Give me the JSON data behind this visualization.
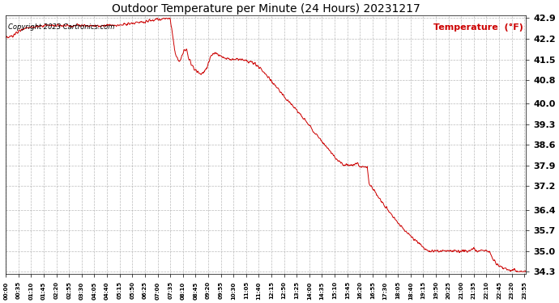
{
  "title": "Outdoor Temperature per Minute (24 Hours) 20231217",
  "copyright_text": "Copyright 2023 Cartronics.com",
  "legend_label": "Temperature  (°F)",
  "line_color": "#cc0000",
  "background_color": "#ffffff",
  "grid_color": "#aaaaaa",
  "text_color": "#000000",
  "legend_color": "#cc0000",
  "copyright_color": "#000000",
  "ylim_min": 34.3,
  "ylim_max": 42.9,
  "yticks": [
    34.3,
    35.0,
    35.7,
    36.4,
    37.2,
    37.9,
    38.6,
    39.3,
    40.0,
    40.8,
    41.5,
    42.2,
    42.9
  ],
  "xtick_labels": [
    "00:00",
    "00:35",
    "01:10",
    "01:45",
    "02:20",
    "02:55",
    "03:30",
    "04:05",
    "04:40",
    "05:15",
    "05:50",
    "06:25",
    "07:00",
    "07:35",
    "08:10",
    "08:45",
    "09:20",
    "09:55",
    "10:30",
    "11:05",
    "11:40",
    "12:15",
    "12:50",
    "13:25",
    "14:00",
    "14:35",
    "15:10",
    "15:45",
    "16:20",
    "16:55",
    "17:30",
    "18:05",
    "18:40",
    "19:15",
    "19:50",
    "20:25",
    "21:00",
    "21:35",
    "22:10",
    "22:45",
    "23:20",
    "23:55"
  ],
  "keypoints": [
    [
      0,
      42.2
    ],
    [
      20,
      42.3
    ],
    [
      40,
      42.5
    ],
    [
      60,
      42.6
    ],
    [
      90,
      42.6
    ],
    [
      120,
      42.65
    ],
    [
      150,
      42.65
    ],
    [
      180,
      42.65
    ],
    [
      210,
      42.65
    ],
    [
      240,
      42.65
    ],
    [
      270,
      42.65
    ],
    [
      300,
      42.65
    ],
    [
      330,
      42.7
    ],
    [
      360,
      42.75
    ],
    [
      390,
      42.8
    ],
    [
      420,
      42.85
    ],
    [
      445,
      42.9
    ],
    [
      450,
      42.9
    ],
    [
      455,
      42.85
    ],
    [
      460,
      42.5
    ],
    [
      465,
      42.0
    ],
    [
      470,
      41.7
    ],
    [
      475,
      41.5
    ],
    [
      480,
      41.4
    ],
    [
      485,
      41.55
    ],
    [
      490,
      41.7
    ],
    [
      495,
      41.8
    ],
    [
      500,
      41.85
    ],
    [
      505,
      41.6
    ],
    [
      510,
      41.45
    ],
    [
      515,
      41.3
    ],
    [
      520,
      41.2
    ],
    [
      525,
      41.15
    ],
    [
      530,
      41.1
    ],
    [
      535,
      41.05
    ],
    [
      540,
      41.0
    ],
    [
      545,
      41.05
    ],
    [
      550,
      41.1
    ],
    [
      555,
      41.2
    ],
    [
      560,
      41.35
    ],
    [
      565,
      41.55
    ],
    [
      570,
      41.65
    ],
    [
      575,
      41.7
    ],
    [
      580,
      41.75
    ],
    [
      585,
      41.7
    ],
    [
      590,
      41.65
    ],
    [
      600,
      41.6
    ],
    [
      610,
      41.55
    ],
    [
      620,
      41.5
    ],
    [
      630,
      41.5
    ],
    [
      640,
      41.5
    ],
    [
      650,
      41.5
    ],
    [
      660,
      41.5
    ],
    [
      670,
      41.45
    ],
    [
      680,
      41.4
    ],
    [
      690,
      41.35
    ],
    [
      700,
      41.25
    ],
    [
      710,
      41.1
    ],
    [
      720,
      41.0
    ],
    [
      730,
      40.85
    ],
    [
      740,
      40.7
    ],
    [
      750,
      40.55
    ],
    [
      760,
      40.4
    ],
    [
      770,
      40.25
    ],
    [
      780,
      40.1
    ],
    [
      790,
      40.0
    ],
    [
      800,
      39.85
    ],
    [
      810,
      39.7
    ],
    [
      820,
      39.55
    ],
    [
      830,
      39.4
    ],
    [
      840,
      39.25
    ],
    [
      850,
      39.1
    ],
    [
      860,
      38.95
    ],
    [
      870,
      38.8
    ],
    [
      880,
      38.65
    ],
    [
      890,
      38.5
    ],
    [
      900,
      38.35
    ],
    [
      910,
      38.2
    ],
    [
      920,
      38.05
    ],
    [
      930,
      37.95
    ],
    [
      940,
      37.9
    ],
    [
      950,
      37.9
    ],
    [
      960,
      37.9
    ],
    [
      970,
      37.95
    ],
    [
      975,
      37.95
    ],
    [
      980,
      37.85
    ],
    [
      990,
      37.85
    ],
    [
      1000,
      37.85
    ],
    [
      1005,
      37.3
    ],
    [
      1010,
      37.2
    ],
    [
      1020,
      37.05
    ],
    [
      1030,
      36.85
    ],
    [
      1040,
      36.65
    ],
    [
      1050,
      36.5
    ],
    [
      1060,
      36.35
    ],
    [
      1070,
      36.2
    ],
    [
      1080,
      36.05
    ],
    [
      1090,
      35.9
    ],
    [
      1100,
      35.75
    ],
    [
      1110,
      35.6
    ],
    [
      1120,
      35.5
    ],
    [
      1130,
      35.4
    ],
    [
      1140,
      35.3
    ],
    [
      1150,
      35.2
    ],
    [
      1155,
      35.1
    ],
    [
      1160,
      35.05
    ],
    [
      1165,
      35.0
    ],
    [
      1170,
      35.0
    ],
    [
      1175,
      34.95
    ],
    [
      1180,
      35.0
    ],
    [
      1185,
      35.0
    ],
    [
      1190,
      35.0
    ],
    [
      1200,
      35.0
    ],
    [
      1210,
      35.0
    ],
    [
      1220,
      35.0
    ],
    [
      1230,
      35.0
    ],
    [
      1240,
      35.0
    ],
    [
      1250,
      35.0
    ],
    [
      1260,
      35.0
    ],
    [
      1270,
      35.0
    ],
    [
      1280,
      35.0
    ],
    [
      1290,
      35.05
    ],
    [
      1295,
      35.1
    ],
    [
      1300,
      35.05
    ],
    [
      1305,
      35.0
    ],
    [
      1310,
      35.0
    ],
    [
      1315,
      35.05
    ],
    [
      1320,
      35.05
    ],
    [
      1325,
      35.0
    ],
    [
      1330,
      35.0
    ],
    [
      1335,
      35.0
    ],
    [
      1340,
      34.95
    ],
    [
      1345,
      34.8
    ],
    [
      1350,
      34.65
    ],
    [
      1360,
      34.55
    ],
    [
      1370,
      34.45
    ],
    [
      1380,
      34.4
    ],
    [
      1390,
      34.35
    ],
    [
      1400,
      34.35
    ],
    [
      1410,
      34.35
    ],
    [
      1420,
      34.3
    ],
    [
      1430,
      34.3
    ],
    [
      1439,
      34.3
    ]
  ]
}
